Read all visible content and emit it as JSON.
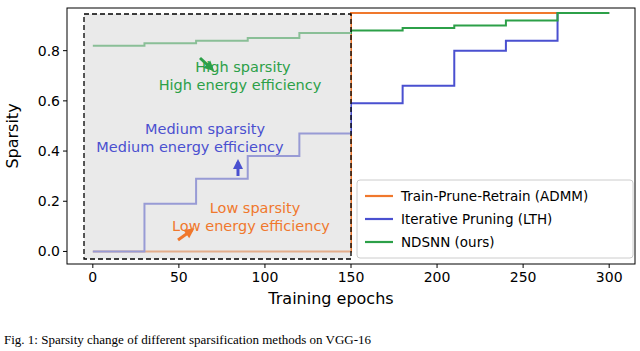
{
  "chart_data": {
    "type": "line",
    "title": "Fig. 1: Sparsity change of different sparsification methods on VGG-16",
    "x_label": "Training epochs",
    "y_label": "Sparsity",
    "xlim": [
      -15,
      315
    ],
    "ylim": [
      -0.05,
      0.97
    ],
    "xticks": [
      0,
      50,
      100,
      150,
      200,
      250,
      300
    ],
    "yticks": [
      {
        "value": 0,
        "label": "0.0"
      },
      {
        "value": 0.2,
        "label": "0.2"
      },
      {
        "value": 0.4,
        "label": "0.4"
      },
      {
        "value": 0.6,
        "label": "0.6"
      },
      {
        "value": 0.8,
        "label": "0.8"
      }
    ],
    "grid": false,
    "legend": "lower right",
    "series": [
      {
        "name": "Train-Prune-Retrain (ADMM)",
        "color": "#f0782d",
        "line_style": "solid",
        "x": [
          0,
          150,
          150,
          300
        ],
        "values": [
          0,
          0,
          0.95,
          0.95
        ]
      },
      {
        "name": "Iterative Pruning (LTH)",
        "color": "#4a50d0",
        "line_style": "solid",
        "x": [
          0,
          30,
          30,
          60,
          60,
          90,
          90,
          120,
          120,
          150,
          150,
          180,
          180,
          210,
          210,
          240,
          240,
          270,
          270,
          300
        ],
        "values": [
          0,
          0,
          0.19,
          0.19,
          0.29,
          0.29,
          0.38,
          0.38,
          0.47,
          0.47,
          0.59,
          0.59,
          0.66,
          0.66,
          0.8,
          0.8,
          0.84,
          0.84,
          0.95,
          0.95
        ]
      },
      {
        "name": "NDSNN (ours)",
        "color": "#2ca048",
        "line_style": "solid",
        "x": [
          0,
          30,
          30,
          60,
          60,
          90,
          90,
          120,
          120,
          150,
          150,
          180,
          180,
          210,
          210,
          240,
          240,
          270,
          270,
          300
        ],
        "values": [
          0.82,
          0.82,
          0.83,
          0.83,
          0.84,
          0.84,
          0.85,
          0.85,
          0.87,
          0.87,
          0.88,
          0.88,
          0.89,
          0.89,
          0.9,
          0.9,
          0.92,
          0.92,
          0.95,
          0.95
        ]
      }
    ],
    "annotations": [
      {
        "text": "High sparsity",
        "color": "#2ca048"
      },
      {
        "text": "High energy efficiency",
        "color": "#2ca048"
      },
      {
        "text": "Medium sparsity",
        "color": "#4a50d0"
      },
      {
        "text": "Medium energy efficiency",
        "color": "#4a50d0"
      },
      {
        "text": "Low sparsity",
        "color": "#f0782d"
      },
      {
        "text": "Low energy efficiency",
        "color": "#f0782d"
      }
    ]
  }
}
